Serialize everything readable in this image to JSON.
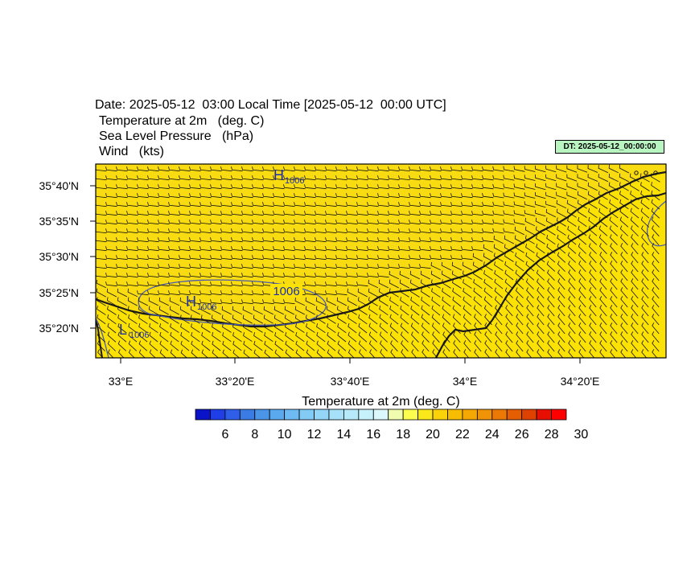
{
  "header": {
    "date_line": "Date: 2025-05-12  03:00 Local Time [2025-05-12  00:00 UTC]",
    "variables": [
      "Temperature at 2m   (deg. C)",
      "Sea Level Pressure   (hPa)",
      "Wind   (kts)"
    ]
  },
  "dt_badge": "DT: 2025-05-12_00:00:00",
  "map": {
    "lat_labels": [
      "35°40'N",
      "35°35'N",
      "35°30'N",
      "35°25'N",
      "35°20'N"
    ],
    "lon_labels": [
      "33°E",
      "33°20'E",
      "33°40'E",
      "34°E",
      "34°20'E"
    ],
    "pressure_labels": {
      "high_1": {
        "letter": "H",
        "value": "1006"
      },
      "high_2": {
        "letter": "H",
        "value": "1006"
      },
      "low_1": {
        "letter": "L",
        "value": "1006"
      },
      "contour": "1006"
    },
    "colors": {
      "land_fill": "#fce105",
      "sea_fill": "#f8db11",
      "coast": "#1a1a1a",
      "isobar": "#4b5bb4",
      "hl_label": "#1f2fa8",
      "barb": "#111111"
    }
  },
  "colorbar": {
    "title": "Temperature at 2m  (deg. C)",
    "tick_labels": [
      "6",
      "8",
      "10",
      "12",
      "14",
      "16",
      "18",
      "20",
      "22",
      "24",
      "26",
      "28",
      "30"
    ],
    "colors": [
      "#0b13c8",
      "#1f3ee6",
      "#2f5fe9",
      "#3b7ce4",
      "#4a95e8",
      "#5aa9ee",
      "#6dbbf2",
      "#81cbf5",
      "#93d6f7",
      "#a6e1f9",
      "#b6eafa",
      "#c8f2fb",
      "#dbf8fd",
      "#f0fcb0",
      "#fdfd4f",
      "#fbe81b",
      "#f9d20a",
      "#f7bd02",
      "#f5a804",
      "#f19306",
      "#ec7905",
      "#e55e04",
      "#df4103",
      "#e70f02",
      "#ff0000"
    ]
  }
}
